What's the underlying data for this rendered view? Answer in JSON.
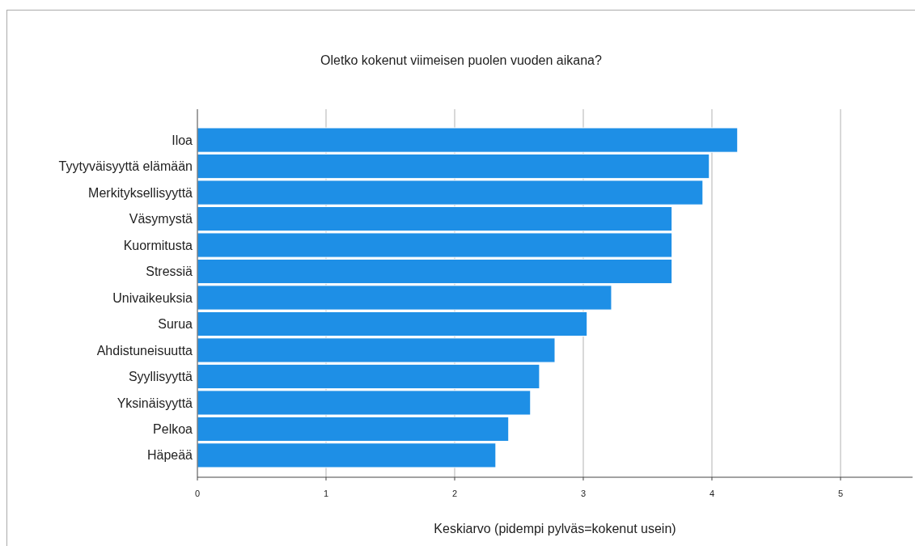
{
  "chart_data": {
    "type": "bar",
    "orientation": "horizontal",
    "title": "Oletko kokenut viimeisen puolen vuoden aikana?",
    "xlabel": "Keskiarvo (pidempi pylväs=kokenut usein)",
    "categories": [
      "Iloa",
      "Tyytyväisyyttä elämään",
      "Merkityksellisyyttä",
      "Väsymystä",
      "Kuormitusta",
      "Stressiä",
      "Univaikeuksia",
      "Surua",
      "Ahdistuneisuutta",
      "Syyllisyyttä",
      "Yksinäisyyttä",
      "Pelkoa",
      "Häpeää"
    ],
    "values": [
      4.2,
      3.98,
      3.93,
      3.69,
      3.69,
      3.69,
      3.22,
      3.03,
      2.78,
      2.66,
      2.59,
      2.42,
      2.32
    ],
    "color": "#1e8fe6",
    "xlim": [
      0,
      5.56
    ],
    "xticks": [
      0,
      1,
      2,
      3,
      4,
      5
    ],
    "grid": "x"
  }
}
